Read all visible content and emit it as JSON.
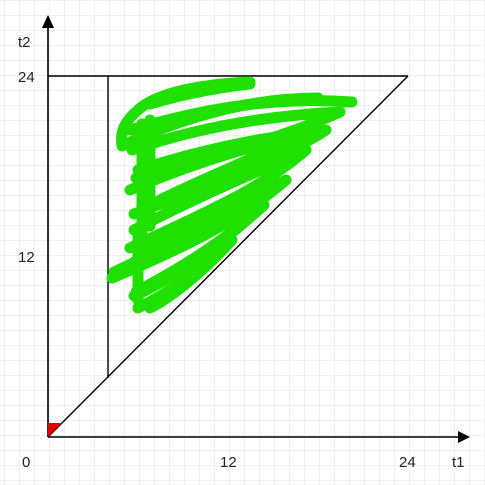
{
  "diagram": {
    "x_axis_label": "t1",
    "y_axis_label": "t2",
    "origin_label": "0",
    "x_ticks": [
      "12",
      "24"
    ],
    "y_ticks": [
      "12",
      "24"
    ],
    "colors": {
      "grid": "#e2e2e2",
      "axes": "#000000",
      "shaded_region": "#1fe000",
      "corner_marker": "#e00000"
    }
  }
}
